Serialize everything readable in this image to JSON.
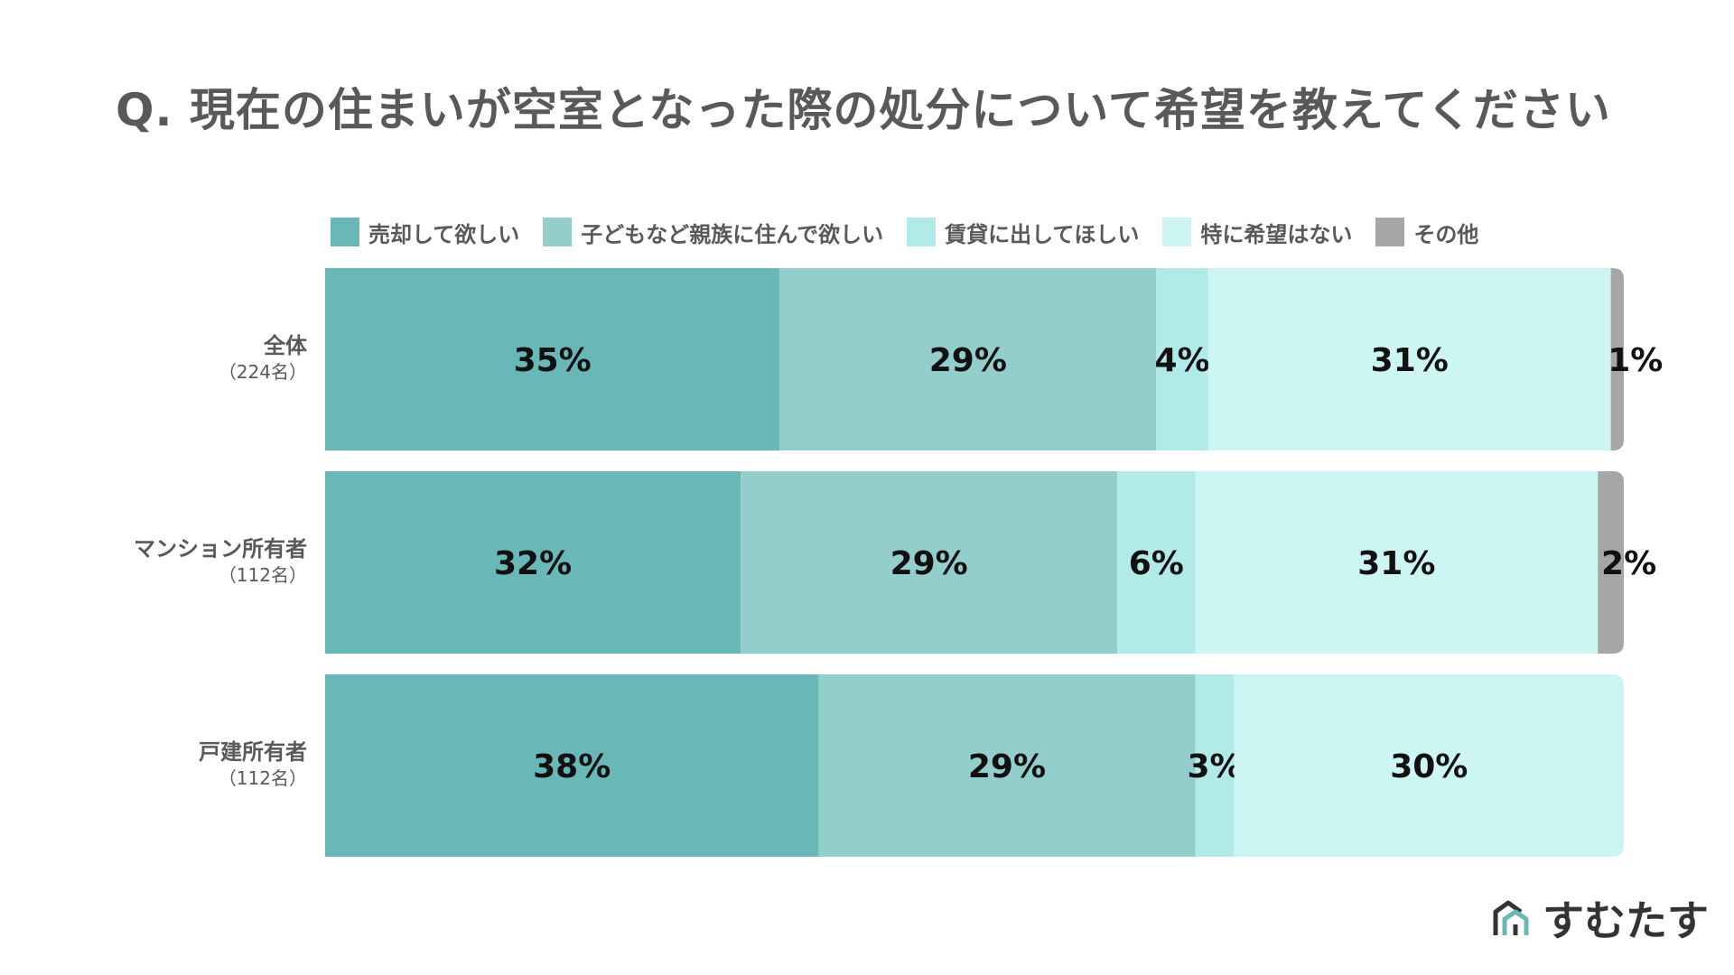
{
  "title": "Q. 現在の住まいが空室となった際の処分について希望を教えてください",
  "brand": {
    "name": "すむたす",
    "logo_icon": "house-logo-icon",
    "color": "#333333",
    "accent": "#69b8b7"
  },
  "chart_data": {
    "type": "bar",
    "orientation": "horizontal",
    "stacked": true,
    "normalized": true,
    "title": "Q. 現在の住まいが空室となった際の処分について希望を教えてください",
    "legend_position": "top",
    "categories": [
      {
        "name": "全体",
        "count": "（224名）"
      },
      {
        "name": "マンション所有者",
        "count": "（112名）"
      },
      {
        "name": "戸建所有者",
        "count": "（112名）"
      }
    ],
    "series": [
      {
        "name": "売却して欲しい",
        "color": "#69b8b7",
        "values": [
          35,
          32,
          38
        ],
        "labels": [
          "35%",
          "32%",
          "38%"
        ]
      },
      {
        "name": "子どもなど親族に住んで欲しい",
        "color": "#93cdcc",
        "values": [
          29,
          29,
          29
        ],
        "labels": [
          "29%",
          "29%",
          "29%"
        ]
      },
      {
        "name": "賃貸に出してほしい",
        "color": "#b2e9e9",
        "values": [
          4,
          6,
          3
        ],
        "labels": [
          "4%",
          "6%",
          "3%"
        ]
      },
      {
        "name": "特に希望はない",
        "color": "#ccf5f4",
        "values": [
          31,
          31,
          30
        ],
        "labels": [
          "31%",
          "31%",
          "30%"
        ]
      },
      {
        "name": "その他",
        "color": "#a6a6a6",
        "values": [
          1,
          2,
          0
        ],
        "labels": [
          "1%",
          "2%",
          ""
        ]
      }
    ]
  }
}
